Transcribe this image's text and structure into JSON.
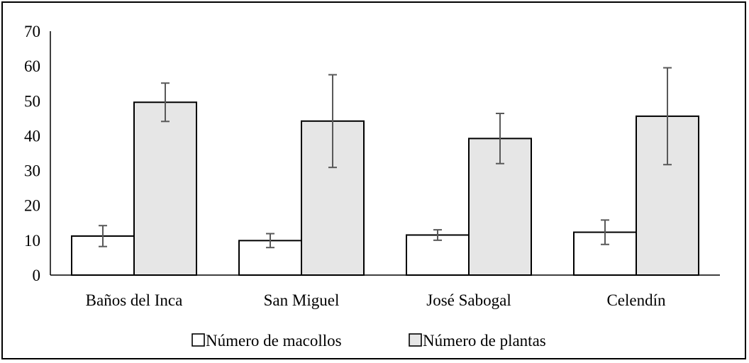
{
  "chart_data": {
    "type": "bar",
    "title": "",
    "xlabel": "",
    "ylabel": "",
    "ylim": [
      0,
      70
    ],
    "yticks": [
      0,
      10,
      20,
      30,
      40,
      50,
      60,
      70
    ],
    "ytick_labels": [
      "0",
      "10",
      "20",
      "30",
      "40",
      "50",
      "60",
      "70"
    ],
    "grid": false,
    "legend_position": "bottom",
    "categories": [
      "Baños del Inca",
      "San Miguel",
      "José Sabogal",
      "Celendín"
    ],
    "series": [
      {
        "name": "Número de macollos",
        "color": "#ffffff",
        "values": [
          11.2,
          9.9,
          11.5,
          12.3
        ],
        "error": [
          3.0,
          2.0,
          1.5,
          3.5
        ]
      },
      {
        "name": "Número de plantas",
        "color": "#e6e6e6",
        "values": [
          49.6,
          44.2,
          39.2,
          45.6
        ],
        "error": [
          5.5,
          13.3,
          7.2,
          13.9
        ]
      }
    ]
  }
}
